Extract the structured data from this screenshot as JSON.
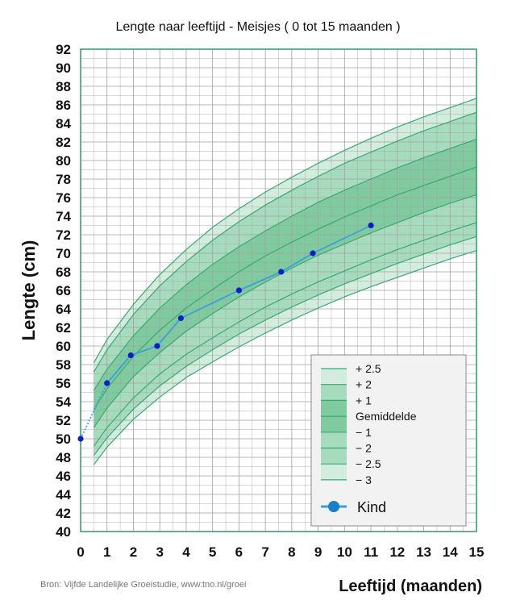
{
  "chart_data": {
    "type": "line",
    "title": "Lengte naar leeftijd - Meisjes ( 0 tot 15 maanden )",
    "xlabel": "Leeftijd (maanden)",
    "ylabel": "Lengte (cm)",
    "source": "Bron: Vijfde Landelijke Groeistudie, www.tno.nl/groei",
    "xlim": [
      0,
      15
    ],
    "ylim": [
      40,
      92
    ],
    "x_ticks": [
      0,
      1,
      2,
      3,
      4,
      5,
      6,
      7,
      8,
      9,
      10,
      11,
      12,
      13,
      14,
      15
    ],
    "y_ticks": [
      40,
      42,
      44,
      46,
      48,
      50,
      52,
      54,
      56,
      58,
      60,
      62,
      64,
      66,
      68,
      70,
      72,
      74,
      76,
      78,
      80,
      82,
      84,
      86,
      88,
      90,
      92
    ],
    "grid": true,
    "reference_x": [
      0.5,
      1,
      2,
      3,
      4,
      5,
      6,
      7,
      8,
      9,
      10,
      11,
      12,
      13,
      14,
      15
    ],
    "reference_curves": [
      {
        "name": "+ 2.5",
        "values": [
          58.2,
          60.7,
          64.5,
          67.7,
          70.4,
          72.8,
          74.8,
          76.6,
          78.2,
          79.7,
          81.1,
          82.4,
          83.6,
          84.7,
          85.7,
          86.7
        ]
      },
      {
        "name": "+ 2",
        "values": [
          57.2,
          59.6,
          63.4,
          66.5,
          69.1,
          71.4,
          73.4,
          75.2,
          76.8,
          78.3,
          79.7,
          80.9,
          82.1,
          83.2,
          84.2,
          85.2
        ]
      },
      {
        "name": "+ 1",
        "values": [
          55.2,
          57.5,
          61.1,
          64.1,
          66.6,
          68.8,
          70.7,
          72.4,
          74.0,
          75.5,
          76.8,
          78.0,
          79.2,
          80.3,
          81.3,
          82.3
        ]
      },
      {
        "name": "Gemiddelde",
        "values": [
          53.2,
          55.4,
          58.9,
          61.7,
          64.1,
          66.1,
          68.0,
          69.7,
          71.2,
          72.6,
          73.9,
          75.1,
          76.3,
          77.3,
          78.3,
          79.3
        ]
      },
      {
        "name": "− 1",
        "values": [
          51.2,
          53.3,
          56.7,
          59.3,
          61.6,
          63.5,
          65.3,
          66.9,
          68.4,
          69.8,
          71.0,
          72.2,
          73.3,
          74.4,
          75.4,
          76.3
        ]
      },
      {
        "name": "− 2",
        "values": [
          49.2,
          51.2,
          54.4,
          57.0,
          59.1,
          60.9,
          62.6,
          64.2,
          65.6,
          66.9,
          68.1,
          69.3,
          70.4,
          71.4,
          72.4,
          73.3
        ]
      },
      {
        "name": "− 2.5",
        "values": [
          48.2,
          50.1,
          53.2,
          55.7,
          57.8,
          59.6,
          61.3,
          62.8,
          64.2,
          65.5,
          66.7,
          67.8,
          68.9,
          69.9,
          70.9,
          71.8
        ]
      },
      {
        "name": "− 3",
        "values": [
          47.2,
          49.1,
          52.1,
          54.5,
          56.6,
          58.3,
          59.9,
          61.4,
          62.8,
          64.1,
          65.3,
          66.4,
          67.4,
          68.4,
          69.4,
          70.3
        ]
      }
    ],
    "series": [
      {
        "name": "Kind",
        "x": [
          0,
          1,
          1.9,
          2.9,
          3.8,
          6,
          7.6,
          8.8,
          11
        ],
        "y": [
          50,
          56,
          59,
          60,
          63,
          66,
          68,
          70,
          73
        ]
      }
    ],
    "legend": {
      "placement": "bottom-right",
      "entries": [
        "+ 2.5",
        "+ 2",
        "+ 1",
        "Gemiddelde",
        "− 1",
        "− 2",
        "− 2.5",
        "− 3"
      ],
      "kind_label": "Kind"
    },
    "colors": {
      "curve_line": "#3aa872",
      "band_outer": "#d2ecdd",
      "band_mid": "#a6dcbd",
      "band_inner": "#7fcb9f",
      "grid": "#a0a0a0",
      "frame": "#2c9a63",
      "child_line": "#3aa0d9",
      "child_point": "#0a1fc8",
      "legend_bg": "#f2f2f2"
    }
  }
}
